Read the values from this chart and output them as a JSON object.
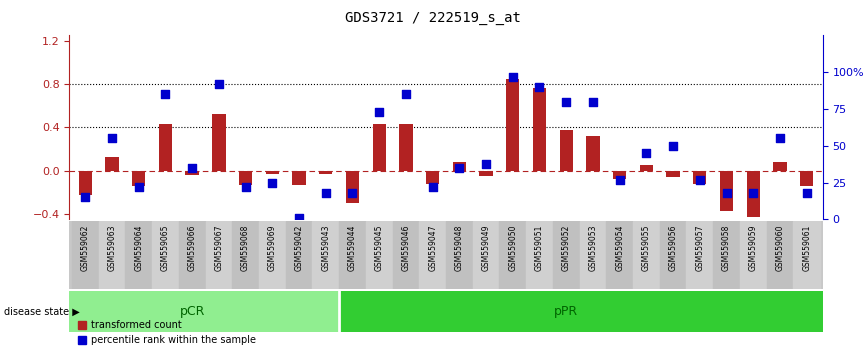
{
  "title": "GDS3721 / 222519_s_at",
  "samples": [
    "GSM559062",
    "GSM559063",
    "GSM559064",
    "GSM559065",
    "GSM559066",
    "GSM559067",
    "GSM559068",
    "GSM559069",
    "GSM559042",
    "GSM559043",
    "GSM559044",
    "GSM559045",
    "GSM559046",
    "GSM559047",
    "GSM559048",
    "GSM559049",
    "GSM559050",
    "GSM559051",
    "GSM559052",
    "GSM559053",
    "GSM559054",
    "GSM559055",
    "GSM559056",
    "GSM559057",
    "GSM559058",
    "GSM559059",
    "GSM559060",
    "GSM559061"
  ],
  "transformed_count": [
    -0.22,
    0.13,
    -0.14,
    0.43,
    -0.04,
    0.52,
    -0.13,
    -0.03,
    -0.13,
    -0.03,
    -0.3,
    0.43,
    0.43,
    -0.12,
    0.08,
    -0.05,
    0.85,
    0.76,
    0.38,
    0.32,
    -0.08,
    0.05,
    -0.06,
    -0.12,
    -0.37,
    -0.43,
    0.08,
    -0.14
  ],
  "percentile_rank": [
    0.15,
    0.55,
    0.22,
    0.85,
    0.35,
    0.92,
    0.22,
    0.25,
    0.01,
    0.18,
    0.18,
    0.73,
    0.85,
    0.22,
    0.35,
    0.38,
    0.97,
    0.9,
    0.8,
    0.8,
    0.27,
    0.45,
    0.5,
    0.27,
    0.18,
    0.18,
    0.55,
    0.18
  ],
  "pCR_count": 10,
  "pPR_count": 18,
  "bar_color": "#B22222",
  "scatter_color": "#0000CD",
  "pCR_color": "#90EE90",
  "pPR_color": "#32CD32",
  "ylim_left": [
    -0.45,
    1.25
  ],
  "yticks_left": [
    -0.4,
    0.0,
    0.4,
    0.8,
    1.2
  ],
  "yticks_right": [
    0,
    0.25,
    0.5,
    0.75,
    1.0
  ],
  "ytick_labels_right": [
    "0",
    "25",
    "50",
    "75",
    "100%"
  ],
  "hlines_dotted": [
    0.4,
    0.8
  ],
  "background_color": "#ffffff"
}
